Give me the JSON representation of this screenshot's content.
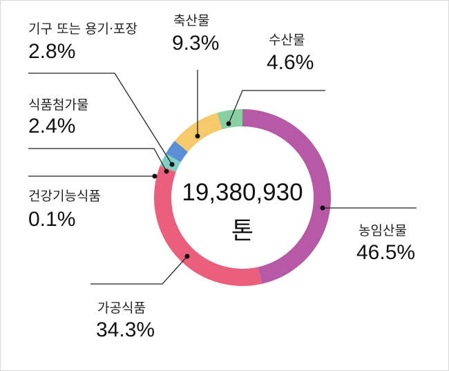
{
  "chart_data": {
    "type": "pie",
    "variant": "donut",
    "center_value": "19,380,930",
    "center_unit": "톤",
    "slices": [
      {
        "label": "농임산물",
        "value": 46.5,
        "display": "46.5%",
        "color": "#b65aa6"
      },
      {
        "label": "가공식품",
        "value": 34.3,
        "display": "34.3%",
        "color": "#ea607c"
      },
      {
        "label": "건강기능식품",
        "value": 0.1,
        "display": "0.1%",
        "color": "#e8705a"
      },
      {
        "label": "식품첨가물",
        "value": 2.4,
        "display": "2.4%",
        "color": "#7fcfc6"
      },
      {
        "label": "기구 또는 용기·포장",
        "value": 2.8,
        "display": "2.8%",
        "color": "#5b8fd5"
      },
      {
        "label": "축산물",
        "value": 9.3,
        "display": "9.3%",
        "color": "#f6c96b"
      },
      {
        "label": "수산물",
        "value": 4.6,
        "display": "4.6%",
        "color": "#88d0a2"
      }
    ],
    "start": "top",
    "direction": "clockwise",
    "legend": "none"
  }
}
